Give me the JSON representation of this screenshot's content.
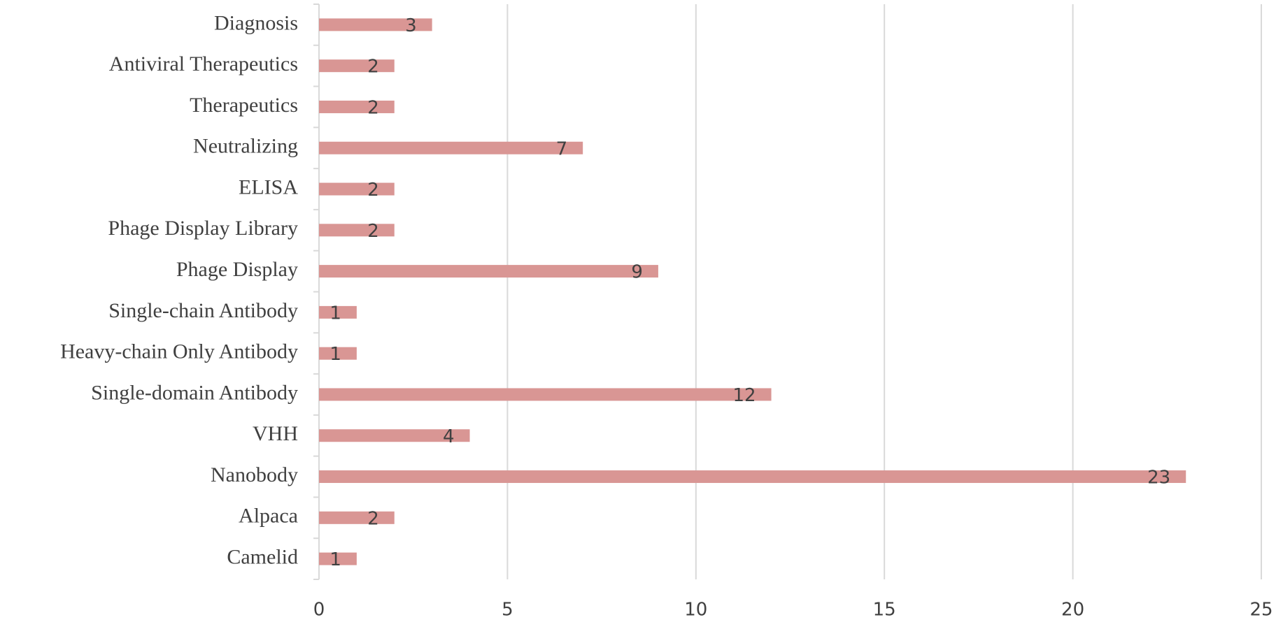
{
  "chart_data": {
    "type": "barh",
    "categories": [
      "Diagnosis",
      "Antiviral Therapeutics",
      "Therapeutics",
      "Neutralizing",
      "ELISA",
      "Phage Display Library",
      "Phage Display",
      "Single-chain Antibody",
      "Heavy-chain Only Antibody",
      "Single-domain Antibody",
      "VHH",
      "Nanobody",
      "Alpaca",
      "Camelid"
    ],
    "values": [
      3,
      2,
      2,
      7,
      2,
      2,
      9,
      1,
      1,
      12,
      4,
      23,
      2,
      1
    ],
    "color": "#d99694",
    "xlim": [
      0,
      25
    ],
    "xticks": [
      0,
      5,
      10,
      15,
      20,
      25
    ],
    "grid": true
  }
}
